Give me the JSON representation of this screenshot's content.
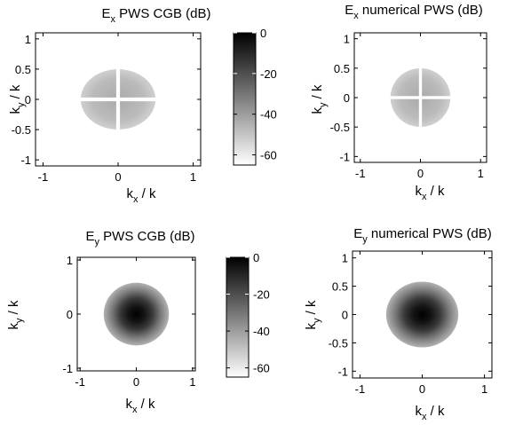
{
  "colors": {
    "map_low": "#ffffff",
    "map_high": "#000000",
    "axes": "#000000"
  },
  "chart_data": [
    {
      "type": "heatmap",
      "title": {
        "main": "E",
        "sub": "x",
        "rest": " PWS CGB (dB)"
      },
      "xlabel": {
        "main": "k",
        "sub": "x",
        "rest": " / k"
      },
      "ylabel": {
        "main": "k",
        "sub": "y",
        "rest": " / k"
      },
      "xlim": [
        -1.1,
        1.1
      ],
      "ylim": [
        -1.1,
        1.1
      ],
      "xticks": [
        -1,
        0,
        1
      ],
      "yticks": [
        1,
        0.5,
        0,
        -0.5,
        -1
      ],
      "pattern": "cross-pol four lobes",
      "field_radius": 0.5,
      "peak_db": -30,
      "colorbar": {
        "range": [
          -65,
          0
        ],
        "ticks": [
          0,
          -20,
          -40,
          -60
        ]
      },
      "grid": false
    },
    {
      "type": "heatmap",
      "title": {
        "main": "E",
        "sub": "x",
        "rest": " numerical PWS (dB)"
      },
      "xlabel": {
        "main": "k",
        "sub": "x",
        "rest": " / k"
      },
      "ylabel": {
        "main": "k",
        "sub": "y",
        "rest": " / k"
      },
      "xlim": [
        -1.1,
        1.1
      ],
      "ylim": [
        -1.1,
        1.1
      ],
      "xticks": [
        -1,
        0,
        1
      ],
      "yticks": [
        1,
        0.5,
        0,
        -0.5,
        -1
      ],
      "pattern": "cross-pol four lobes",
      "field_radius": 0.5,
      "peak_db": -30,
      "grid": false
    },
    {
      "type": "heatmap",
      "title": {
        "main": "E",
        "sub": "y",
        "rest": " PWS CGB (dB)"
      },
      "xlabel": {
        "main": "k",
        "sub": "x",
        "rest": " / k"
      },
      "ylabel": {
        "main": "k",
        "sub": "y",
        "rest": " / k"
      },
      "xlim": [
        -1.05,
        1.05
      ],
      "ylim": [
        -1.05,
        1.05
      ],
      "xticks": [
        -1,
        0,
        1
      ],
      "yticks": [
        1,
        0,
        -1
      ],
      "pattern": "co-pol central spot",
      "field_radius": 0.58,
      "peak_db": 0,
      "colorbar": {
        "range": [
          -65,
          0
        ],
        "ticks": [
          0,
          -20,
          -40,
          -60
        ]
      },
      "grid": false
    },
    {
      "type": "heatmap",
      "title": {
        "main": "E",
        "sub": "y",
        "rest": " numerical PWS  (dB)"
      },
      "xlabel": {
        "main": "k",
        "sub": "x",
        "rest": " / k"
      },
      "ylabel": {
        "main": "k",
        "sub": "y",
        "rest": " / k"
      },
      "xlim": [
        -1.12,
        1.12
      ],
      "ylim": [
        -1.12,
        1.12
      ],
      "xticks": [
        -1,
        0,
        1
      ],
      "yticks": [
        1,
        0.5,
        0,
        -0.5,
        -1
      ],
      "pattern": "co-pol central spot",
      "field_radius": 0.58,
      "peak_db": 0,
      "grid": false
    }
  ]
}
